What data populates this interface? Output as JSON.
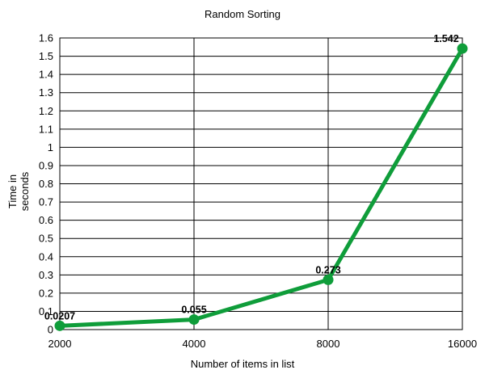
{
  "chart_data": {
    "type": "line",
    "title": "Random Sorting",
    "xlabel": "Number of items in list",
    "ylabel": [
      "Time in",
      "seconds"
    ],
    "categories": [
      "2000",
      "4000",
      "8000",
      "16000"
    ],
    "series": [
      {
        "values": [
          0.0207,
          0.055,
          0.273,
          1.542
        ],
        "labels": [
          "0.0207",
          "0.055",
          "0.273",
          "1.542"
        ],
        "color": "#0f9d3a"
      }
    ],
    "ylim": [
      0,
      1.6
    ],
    "ystep": 0.1,
    "yticks": [
      "0",
      "0.1",
      "0.2",
      "0.3",
      "0.4",
      "0.5",
      "0.6",
      "0.7",
      "0.8",
      "0.9",
      "1",
      "1.1",
      "1.2",
      "1.3",
      "1.4",
      "1.5",
      "1.6"
    ],
    "grid": true,
    "legend": "none"
  }
}
